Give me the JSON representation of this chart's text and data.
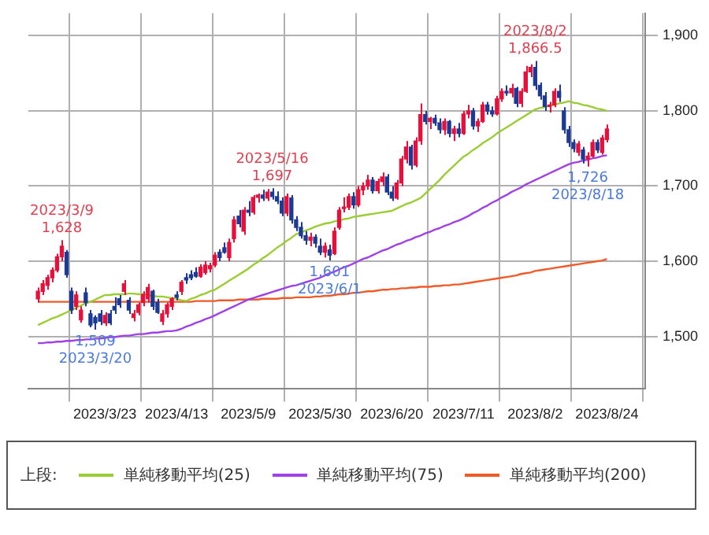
{
  "chart_data": {
    "type": "candlestick",
    "legend": "bottom",
    "legend_title": "上段:",
    "grid": true,
    "marker": "none",
    "categories": [
      null,
      null,
      null,
      null,
      null,
      null,
      null,
      null,
      null,
      null,
      null,
      null,
      null,
      null,
      "2023/3/23",
      null,
      null,
      null,
      null,
      null,
      null,
      null,
      null,
      null,
      null,
      null,
      null,
      null,
      null,
      "2023/4/13",
      null,
      null,
      null,
      null,
      null,
      null,
      null,
      null,
      null,
      null,
      null,
      null,
      null,
      null,
      "2023/5/9",
      null,
      null,
      null,
      null,
      null,
      null,
      null,
      null,
      null,
      null,
      null,
      null,
      null,
      null,
      "2023/5/30",
      null,
      null,
      null,
      null,
      null,
      null,
      null,
      null,
      null,
      null,
      null,
      null,
      null,
      null,
      "2023/6/20",
      null,
      null,
      null,
      null,
      null,
      null,
      null,
      null,
      null,
      null,
      null,
      null,
      null,
      null,
      "2023/7/11",
      null,
      null,
      null,
      null,
      null,
      null,
      null,
      null,
      null,
      null,
      null,
      null,
      null,
      null,
      "2023/8/2",
      null,
      null,
      null,
      null,
      null,
      null,
      null,
      null,
      null,
      null,
      null,
      null,
      null,
      null,
      "2023/8/24"
    ],
    "ylim": [
      1430,
      1930
    ],
    "yticks": [
      {
        "value": 1500,
        "label": "1,500"
      },
      {
        "value": 1600,
        "label": "1,600"
      },
      {
        "value": 1700,
        "label": "1,700"
      },
      {
        "value": 1800,
        "label": "1,800"
      },
      {
        "value": 1900,
        "label": "1,900"
      }
    ],
    "annotations": [
      {
        "text": "2023/3/9\n1,628",
        "y": 1628
      },
      {
        "text": "1,509\n2023/3/20",
        "y": 1509
      },
      {
        "text": "2023/5/16\n1,697",
        "y": 1697
      },
      {
        "text": "1,601\n2023/6/1",
        "y": 1601
      },
      {
        "text": "2023/8/2\n1,866.5",
        "y": 1866.5
      },
      {
        "text": "1,726\n2023/8/18",
        "y": 1726
      }
    ],
    "series": [
      {
        "type": "candlestick",
        "ohlc": [
          [
            1550,
            1565,
            1545,
            1560
          ],
          [
            1560,
            1575,
            1555,
            1570
          ],
          [
            1568,
            1582,
            1562,
            1578
          ],
          [
            1578,
            1592,
            1572,
            1588
          ],
          [
            1588,
            1610,
            1585,
            1606
          ],
          [
            1606,
            1628,
            1600,
            1620
          ],
          [
            1612,
            1615,
            1578,
            1582
          ],
          [
            1560,
            1565,
            1530,
            1535
          ],
          [
            1540,
            1560,
            1535,
            1555
          ],
          [
            1522,
            1540,
            1518,
            1535
          ],
          [
            1558,
            1565,
            1540,
            1545
          ],
          [
            1530,
            1535,
            1512,
            1515
          ],
          [
            1525,
            1528,
            1509,
            1518
          ],
          [
            1530,
            1535,
            1515,
            1520
          ],
          [
            1518,
            1532,
            1514,
            1528
          ],
          [
            1530,
            1535,
            1515,
            1518
          ],
          [
            1540,
            1552,
            1530,
            1535
          ],
          [
            1550,
            1555,
            1538,
            1542
          ],
          [
            1560,
            1575,
            1555,
            1570
          ],
          [
            1548,
            1552,
            1530,
            1535
          ],
          [
            1525,
            1535,
            1520,
            1530
          ],
          [
            1532,
            1545,
            1528,
            1542
          ],
          [
            1545,
            1560,
            1540,
            1556
          ],
          [
            1550,
            1570,
            1545,
            1565
          ],
          [
            1560,
            1562,
            1535,
            1540
          ],
          [
            1545,
            1550,
            1530,
            1532
          ],
          [
            1520,
            1535,
            1515,
            1530
          ],
          [
            1530,
            1545,
            1525,
            1542
          ],
          [
            1540,
            1552,
            1535,
            1550
          ],
          [
            1555,
            1560,
            1548,
            1552
          ],
          [
            1560,
            1575,
            1555,
            1572
          ],
          [
            1578,
            1584,
            1570,
            1575
          ],
          [
            1582,
            1588,
            1575,
            1578
          ],
          [
            1585,
            1592,
            1578,
            1580
          ],
          [
            1580,
            1596,
            1578,
            1592
          ],
          [
            1585,
            1600,
            1582,
            1595
          ],
          [
            1590,
            1598,
            1585,
            1594
          ],
          [
            1595,
            1612,
            1592,
            1608
          ],
          [
            1612,
            1616,
            1600,
            1605
          ],
          [
            1618,
            1625,
            1610,
            1612
          ],
          [
            1605,
            1630,
            1600,
            1625
          ],
          [
            1630,
            1660,
            1625,
            1655
          ],
          [
            1660,
            1668,
            1645,
            1650
          ],
          [
            1640,
            1672,
            1635,
            1668
          ],
          [
            1668,
            1680,
            1660,
            1665
          ],
          [
            1665,
            1688,
            1662,
            1685
          ],
          [
            1685,
            1690,
            1678,
            1688
          ],
          [
            1688,
            1695,
            1680,
            1684
          ],
          [
            1684,
            1696,
            1680,
            1692
          ],
          [
            1692,
            1697,
            1682,
            1686
          ],
          [
            1686,
            1693,
            1676,
            1680
          ],
          [
            1680,
            1685,
            1660,
            1664
          ],
          [
            1664,
            1690,
            1660,
            1686
          ],
          [
            1684,
            1688,
            1650,
            1655
          ],
          [
            1655,
            1660,
            1640,
            1645
          ],
          [
            1645,
            1652,
            1630,
            1634
          ],
          [
            1634,
            1640,
            1622,
            1628
          ],
          [
            1628,
            1638,
            1620,
            1632
          ],
          [
            1632,
            1636,
            1618,
            1624
          ],
          [
            1620,
            1630,
            1608,
            1612
          ],
          [
            1612,
            1625,
            1605,
            1620
          ],
          [
            1615,
            1622,
            1601,
            1608
          ],
          [
            1610,
            1645,
            1608,
            1640
          ],
          [
            1645,
            1672,
            1642,
            1668
          ],
          [
            1670,
            1685,
            1665,
            1672
          ],
          [
            1672,
            1690,
            1668,
            1686
          ],
          [
            1686,
            1692,
            1670,
            1675
          ],
          [
            1675,
            1700,
            1672,
            1695
          ],
          [
            1695,
            1705,
            1688,
            1700
          ],
          [
            1700,
            1715,
            1695,
            1708
          ],
          [
            1708,
            1712,
            1690,
            1694
          ],
          [
            1694,
            1710,
            1690,
            1706
          ],
          [
            1706,
            1718,
            1700,
            1712
          ],
          [
            1712,
            1716,
            1688,
            1692
          ],
          [
            1692,
            1700,
            1680,
            1684
          ],
          [
            1684,
            1708,
            1682,
            1704
          ],
          [
            1704,
            1740,
            1700,
            1736
          ],
          [
            1736,
            1760,
            1730,
            1752
          ],
          [
            1752,
            1755,
            1722,
            1728
          ],
          [
            1728,
            1765,
            1725,
            1760
          ],
          [
            1760,
            1810,
            1755,
            1795
          ],
          [
            1795,
            1800,
            1782,
            1786
          ],
          [
            1786,
            1792,
            1776,
            1790
          ],
          [
            1790,
            1795,
            1780,
            1784
          ],
          [
            1784,
            1790,
            1770,
            1775
          ],
          [
            1775,
            1790,
            1768,
            1786
          ],
          [
            1786,
            1788,
            1765,
            1770
          ],
          [
            1770,
            1780,
            1760,
            1776
          ],
          [
            1776,
            1784,
            1765,
            1770
          ],
          [
            1770,
            1800,
            1768,
            1796
          ],
          [
            1796,
            1808,
            1790,
            1800
          ],
          [
            1800,
            1804,
            1775,
            1780
          ],
          [
            1780,
            1790,
            1772,
            1786
          ],
          [
            1786,
            1812,
            1784,
            1808
          ],
          [
            1808,
            1812,
            1795,
            1800
          ],
          [
            1800,
            1806,
            1792,
            1796
          ],
          [
            1796,
            1820,
            1794,
            1816
          ],
          [
            1816,
            1830,
            1812,
            1826
          ],
          [
            1826,
            1834,
            1820,
            1824
          ],
          [
            1824,
            1836,
            1818,
            1830
          ],
          [
            1830,
            1832,
            1805,
            1810
          ],
          [
            1810,
            1830,
            1805,
            1826
          ],
          [
            1826,
            1860,
            1824,
            1852
          ],
          [
            1852,
            1862,
            1845,
            1858
          ],
          [
            1858,
            1866.5,
            1828,
            1834
          ],
          [
            1834,
            1838,
            1815,
            1820
          ],
          [
            1820,
            1825,
            1800,
            1806
          ],
          [
            1806,
            1812,
            1798,
            1808
          ],
          [
            1808,
            1830,
            1805,
            1826
          ],
          [
            1826,
            1835,
            1812,
            1818
          ],
          [
            1800,
            1805,
            1770,
            1775
          ],
          [
            1775,
            1780,
            1752,
            1758
          ],
          [
            1758,
            1762,
            1745,
            1750
          ],
          [
            1745,
            1760,
            1740,
            1756
          ],
          [
            1748,
            1752,
            1730,
            1736
          ],
          [
            1736,
            1745,
            1726,
            1740
          ],
          [
            1740,
            1762,
            1738,
            1758
          ],
          [
            1758,
            1762,
            1744,
            1748
          ],
          [
            1745,
            1768,
            1742,
            1764
          ],
          [
            1762,
            1782,
            1758,
            1776
          ]
        ],
        "colors": [
          "#e8103a",
          "#e8103a",
          "#e8103a",
          "#e8103a",
          "#e8103a",
          "#e8103a",
          "#1c3a94",
          "#1c3a94",
          "#e8103a",
          "#e8103a",
          "#1c3a94",
          "#1c3a94",
          "#1c3a94",
          "#1c3a94",
          "#e8103a",
          "#1c3a94",
          "#1c3a94",
          "#1c3a94",
          "#e8103a",
          "#1c3a94",
          "#e8103a",
          "#e8103a",
          "#e8103a",
          "#e8103a",
          "#1c3a94",
          "#1c3a94",
          "#e8103a",
          "#e8103a",
          "#e8103a",
          "#1c3a94",
          "#e8103a",
          "#1c3a94",
          "#1c3a94",
          "#1c3a94",
          "#e8103a",
          "#e8103a",
          "#e8103a",
          "#e8103a",
          "#1c3a94",
          "#1c3a94",
          "#e8103a",
          "#e8103a",
          "#1c3a94",
          "#e8103a",
          "#1c3a94",
          "#e8103a",
          "#e8103a",
          "#1c3a94",
          "#e8103a",
          "#1c3a94",
          "#1c3a94",
          "#1c3a94",
          "#e8103a",
          "#1c3a94",
          "#1c3a94",
          "#1c3a94",
          "#1c3a94",
          "#e8103a",
          "#1c3a94",
          "#1c3a94",
          "#e8103a",
          "#1c3a94",
          "#e8103a",
          "#e8103a",
          "#e8103a",
          "#e8103a",
          "#1c3a94",
          "#e8103a",
          "#e8103a",
          "#e8103a",
          "#1c3a94",
          "#e8103a",
          "#e8103a",
          "#1c3a94",
          "#1c3a94",
          "#e8103a",
          "#e8103a",
          "#e8103a",
          "#1c3a94",
          "#e8103a",
          "#e8103a",
          "#1c3a94",
          "#e8103a",
          "#1c3a94",
          "#1c3a94",
          "#e8103a",
          "#1c3a94",
          "#e8103a",
          "#1c3a94",
          "#e8103a",
          "#e8103a",
          "#1c3a94",
          "#e8103a",
          "#e8103a",
          "#1c3a94",
          "#1c3a94",
          "#e8103a",
          "#e8103a",
          "#1c3a94",
          "#e8103a",
          "#1c3a94",
          "#e8103a",
          "#e8103a",
          "#e8103a",
          "#1c3a94",
          "#1c3a94",
          "#1c3a94",
          "#e8103a",
          "#e8103a",
          "#1c3a94",
          "#1c3a94",
          "#1c3a94",
          "#1c3a94",
          "#e8103a",
          "#1c3a94",
          "#e8103a",
          "#e8103a",
          "#1c3a94",
          "#e8103a",
          "#e8103a"
        ]
      },
      {
        "type": "line",
        "name": "単純移動平均(25)",
        "color": "#9acd32",
        "values": [
          1515,
          1518,
          1521,
          1524,
          1526,
          1529,
          1532,
          1535,
          1538,
          1541,
          1544,
          1546,
          1549,
          1552,
          1555,
          1555,
          1556,
          1556,
          1556,
          1557,
          1557,
          1556,
          1556,
          1555,
          1554,
          1553,
          1553,
          1552,
          1551,
          1550,
          1548,
          1547,
          1550,
          1552,
          1555,
          1557,
          1560,
          1562,
          1566,
          1570,
          1574,
          1578,
          1582,
          1586,
          1590,
          1595,
          1599,
          1604,
          1608,
          1613,
          1618,
          1622,
          1627,
          1631,
          1636,
          1638,
          1641,
          1643,
          1646,
          1648,
          1650,
          1651,
          1653,
          1654,
          1656,
          1657,
          1659,
          1660,
          1661,
          1662,
          1663,
          1664,
          1665,
          1666,
          1667,
          1670,
          1673,
          1676,
          1678,
          1681,
          1684,
          1690,
          1696,
          1702,
          1708,
          1715,
          1721,
          1727,
          1733,
          1739,
          1743,
          1748,
          1752,
          1757,
          1761,
          1765,
          1770,
          1774,
          1778,
          1782,
          1786,
          1790,
          1794,
          1798,
          1802,
          1804,
          1805,
          1807,
          1808,
          1810,
          1811,
          1813,
          1811,
          1810,
          1808,
          1807,
          1805,
          1803,
          1802,
          1800
        ]
      },
      {
        "type": "line",
        "name": "単純移動平均(75)",
        "color": "#a040e8",
        "values": [
          1491,
          1491,
          1492,
          1492,
          1493,
          1493,
          1494,
          1494,
          1495,
          1495,
          1496,
          1496,
          1497,
          1497,
          1498,
          1499,
          1499,
          1500,
          1501,
          1501,
          1502,
          1503,
          1503,
          1504,
          1505,
          1505,
          1506,
          1507,
          1507,
          1508,
          1510,
          1513,
          1515,
          1518,
          1520,
          1523,
          1525,
          1528,
          1531,
          1534,
          1537,
          1540,
          1543,
          1546,
          1549,
          1551,
          1553,
          1555,
          1557,
          1559,
          1561,
          1563,
          1565,
          1567,
          1568,
          1570,
          1572,
          1574,
          1576,
          1578,
          1581,
          1584,
          1586,
          1589,
          1592,
          1594,
          1597,
          1600,
          1603,
          1605,
          1608,
          1611,
          1614,
          1616,
          1619,
          1622,
          1624,
          1627,
          1629,
          1632,
          1634,
          1637,
          1639,
          1642,
          1644,
          1647,
          1649,
          1652,
          1654,
          1657,
          1660,
          1664,
          1667,
          1671,
          1674,
          1678,
          1681,
          1685,
          1688,
          1692,
          1695,
          1698,
          1702,
          1705,
          1708,
          1711,
          1714,
          1717,
          1720,
          1723,
          1726,
          1729,
          1731,
          1732,
          1734,
          1735,
          1737,
          1738,
          1740,
          1741
        ]
      },
      {
        "type": "line",
        "name": "単純移動平均(200)",
        "color": "#f05a28",
        "values": [
          1546,
          1546,
          1546,
          1546,
          1546,
          1546,
          1546,
          1546,
          1546,
          1546,
          1546,
          1546,
          1546,
          1546,
          1546,
          1546,
          1546,
          1546,
          1546,
          1546,
          1546,
          1546,
          1546,
          1546,
          1546,
          1546,
          1546,
          1546,
          1546,
          1546,
          1546,
          1546,
          1546,
          1547,
          1547,
          1547,
          1547,
          1547,
          1548,
          1548,
          1548,
          1548,
          1549,
          1549,
          1549,
          1549,
          1549,
          1550,
          1550,
          1550,
          1550,
          1551,
          1551,
          1551,
          1552,
          1552,
          1552,
          1552,
          1553,
          1553,
          1554,
          1554,
          1555,
          1556,
          1556,
          1557,
          1558,
          1558,
          1559,
          1560,
          1560,
          1561,
          1562,
          1562,
          1563,
          1563,
          1564,
          1564,
          1565,
          1565,
          1566,
          1566,
          1566,
          1567,
          1567,
          1568,
          1568,
          1569,
          1569,
          1570,
          1571,
          1572,
          1573,
          1574,
          1575,
          1576,
          1577,
          1578,
          1579,
          1580,
          1581,
          1583,
          1584,
          1585,
          1587,
          1588,
          1589,
          1590,
          1591,
          1592,
          1593,
          1594,
          1595,
          1596,
          1597,
          1598,
          1599,
          1600,
          1601,
          1603
        ]
      }
    ]
  }
}
